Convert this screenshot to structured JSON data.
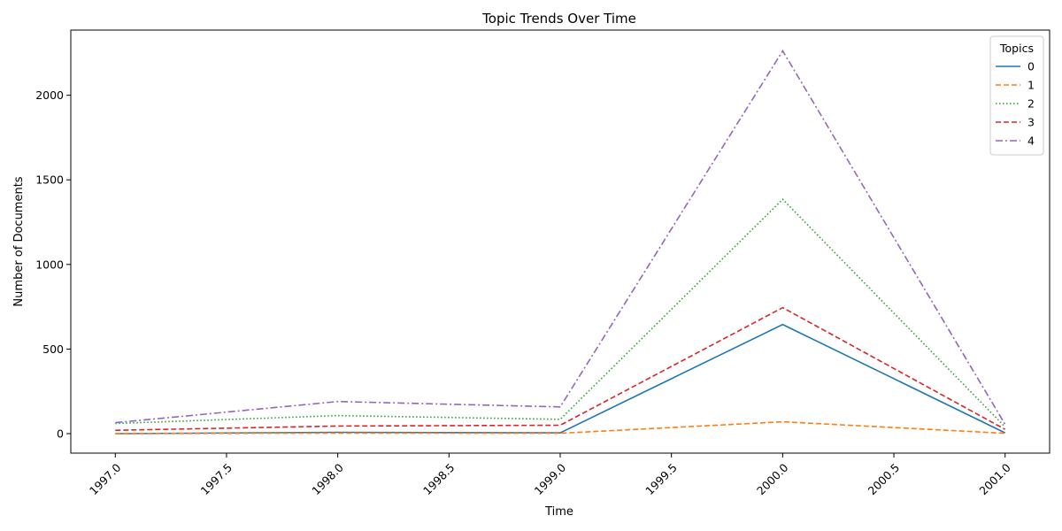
{
  "chart_data": {
    "type": "line",
    "title": "Topic Trends Over Time",
    "xlabel": "Time",
    "ylabel": "Number of Documents",
    "x": [
      1997,
      1998,
      1999,
      2000,
      2001
    ],
    "xlim": [
      1996.8,
      2001.2
    ],
    "ylim": [
      -115,
      2385
    ],
    "xticks": [
      1997.0,
      1997.5,
      1998.0,
      1998.5,
      1999.0,
      1999.5,
      2000.0,
      2000.5,
      2001.0
    ],
    "xtick_labels": [
      "1997.0",
      "1997.5",
      "1998.0",
      "1998.5",
      "1999.0",
      "1999.5",
      "2000.0",
      "2000.5",
      "2001.0"
    ],
    "yticks": [
      0,
      500,
      1000,
      1500,
      2000
    ],
    "ytick_labels": [
      "0",
      "500",
      "1000",
      "1500",
      "2000"
    ],
    "xtick_rotation": 45,
    "grid": false,
    "legend": {
      "title": "Topics",
      "placement": "top-right"
    },
    "series": [
      {
        "name": "0",
        "values": [
          0,
          8,
          5,
          645,
          5
        ],
        "color": "#1f77b4",
        "dash": "solid"
      },
      {
        "name": "1",
        "values": [
          0,
          3,
          2,
          70,
          2
        ],
        "color": "#ff7f0e",
        "dash": "dashed"
      },
      {
        "name": "2",
        "values": [
          60,
          107,
          85,
          1385,
          40
        ],
        "color": "#2ca02c",
        "dash": "dotted"
      },
      {
        "name": "3",
        "values": [
          20,
          45,
          50,
          745,
          25
        ],
        "color": "#d62728",
        "dash": "dashed"
      },
      {
        "name": "4",
        "values": [
          65,
          190,
          158,
          2262,
          55
        ],
        "color": "#9467bd",
        "dash": "dashdot"
      }
    ]
  }
}
